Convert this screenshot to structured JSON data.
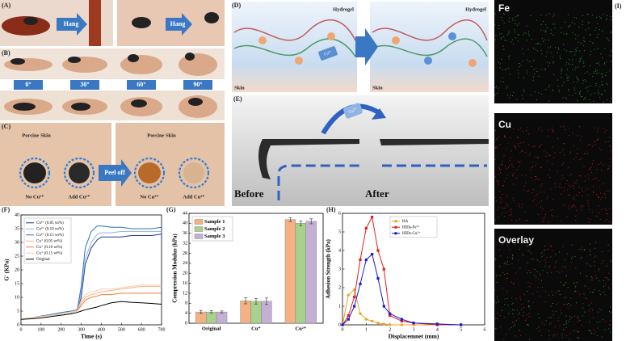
{
  "figure": {
    "A": {
      "label": "(A)",
      "arrows": [
        "Hang",
        "Hang"
      ]
    },
    "B": {
      "label": "(B)",
      "angles": [
        "0°",
        "30°",
        "60°",
        "90°"
      ]
    },
    "C": {
      "label": "(C)",
      "sites": [
        "Porcine Skin",
        "Porcine Skin"
      ],
      "samples": [
        "No Cu²⁺",
        "Add Cu²⁺",
        "No Cu²⁺",
        "Add Cu²⁺"
      ],
      "arrow": "Peel off"
    },
    "D": {
      "label": "(D)",
      "hydrogel": [
        "Hydrogel",
        "Hydrogel"
      ],
      "skin": [
        "Skin",
        "Skin"
      ],
      "ion": "Cu²⁺"
    },
    "E": {
      "label": "(E)",
      "ion": "Cu²⁺",
      "states": [
        "Before",
        "After"
      ]
    },
    "I": {
      "label": "(I)",
      "maps": [
        "Fe",
        "Cu",
        "Overlay"
      ]
    }
  },
  "chart_data": [
    {
      "panel_label": "(F)",
      "type": "line",
      "xlabel": "Time (s)",
      "ylabel": "G' (KPa)",
      "x": [
        0,
        50,
        100,
        150,
        200,
        250,
        280,
        300,
        320,
        350,
        380,
        400,
        450,
        500,
        550,
        600,
        650,
        700
      ],
      "xlim": [
        0,
        700
      ],
      "xticks": [
        0,
        100,
        200,
        300,
        400,
        500,
        600,
        700
      ],
      "ylim": [
        0,
        40
      ],
      "yticks": [
        0,
        5,
        10,
        15,
        20,
        25,
        30,
        35,
        40
      ],
      "legend": "upper left",
      "series": [
        {
          "name": "Cu²⁺ (0.05 wt%)",
          "color": "#1f3a93",
          "values": [
            2,
            2.5,
            3,
            3.5,
            4,
            4.5,
            5,
            10,
            22,
            28,
            31,
            32,
            32,
            32,
            32.5,
            32.5,
            32.5,
            33
          ]
        },
        {
          "name": "Cu²⁺ (0.10 wt%)",
          "color": "#8fb4e3",
          "values": [
            2,
            2.5,
            3,
            3.5,
            4,
            4.5,
            5,
            12,
            24,
            30,
            33,
            33.5,
            33.5,
            34,
            34,
            34,
            34,
            34
          ]
        },
        {
          "name": "Cu²⁺ (0.15 wt%)",
          "color": "#2e75b6",
          "values": [
            2,
            2.5,
            3.2,
            3.8,
            4.5,
            5,
            5.5,
            14,
            28,
            34,
            36,
            36,
            35.5,
            35.5,
            35,
            35,
            35,
            35.5
          ]
        },
        {
          "name": "Cu⁺ (0.05 wt%)",
          "color": "#f4b183",
          "values": [
            2,
            2.5,
            3,
            3.5,
            4,
            4.5,
            5,
            8,
            10,
            11,
            11.5,
            12,
            12.5,
            13,
            13.5,
            14,
            14,
            14
          ]
        },
        {
          "name": "Cu⁺ (0.10 wt%)",
          "color": "#ed7d31",
          "values": [
            2,
            2.5,
            3,
            3.5,
            4,
            4.5,
            5,
            7,
            9,
            10,
            10.5,
            11,
            11,
            11.5,
            11.5,
            11.5,
            11.5,
            11.5
          ]
        },
        {
          "name": "Cu⁺ (0.15 wt%)",
          "color": "#f8cbad",
          "values": [
            2,
            2.5,
            3,
            3.5,
            4,
            4.5,
            5,
            9,
            11,
            12,
            12.5,
            13,
            13,
            13.5,
            14,
            14.5,
            14.5,
            14.5
          ]
        },
        {
          "name": "Original",
          "color": "#000000",
          "values": [
            2,
            2.2,
            2.5,
            3,
            3.5,
            4,
            4.5,
            5,
            5.5,
            6,
            6.5,
            7,
            8,
            8.5,
            8.2,
            8,
            7.8,
            7.5
          ]
        }
      ]
    },
    {
      "panel_label": "(G)",
      "type": "bar",
      "ylabel": "Compression Modulus (kPa)",
      "categories": [
        "Original",
        "Cu⁺",
        "Cu²⁺"
      ],
      "ylim": [
        0,
        44
      ],
      "yticks": [
        0,
        4,
        8,
        12,
        16,
        20,
        24,
        28,
        32,
        36,
        40,
        44
      ],
      "legend": "upper left",
      "series": [
        {
          "name": "Sample 1",
          "color": "#f4b183",
          "values": [
            4.5,
            9,
            41.5
          ],
          "errors": [
            0.6,
            1.2,
            0.8
          ]
        },
        {
          "name": "Sample 2",
          "color": "#a9d18e",
          "values": [
            4.5,
            8.8,
            40
          ],
          "errors": [
            0.5,
            1.1,
            0.9
          ]
        },
        {
          "name": "Sample 3",
          "color": "#c5b0d5",
          "values": [
            4.5,
            8.8,
            40.8
          ],
          "errors": [
            0.4,
            1.3,
            1
          ]
        }
      ]
    },
    {
      "panel_label": "(H)",
      "type": "line",
      "xlabel": "Displacemnet (mm)",
      "ylabel": "Adhesion Strength (kPa)",
      "x": [
        0,
        0.25,
        0.5,
        0.75,
        1,
        1.25,
        1.5,
        1.75,
        2,
        2.5,
        3,
        4,
        5
      ],
      "xlim": [
        0,
        6
      ],
      "xticks": [
        0,
        1,
        2,
        3,
        4,
        5,
        6
      ],
      "ylim": [
        0,
        6
      ],
      "yticks": [
        0,
        1,
        2,
        3,
        4,
        5,
        6
      ],
      "legend": "upper center",
      "series": [
        {
          "name": "HA",
          "color": "#f0a020",
          "marker": "circle",
          "values": [
            0,
            1.6,
            1.9,
            0.6,
            0.3,
            0.2,
            0.1,
            0.05,
            0,
            0,
            0,
            0,
            0
          ]
        },
        {
          "name": "HIDs-Fe³⁺",
          "color": "#e02020",
          "marker": "square",
          "values": [
            0,
            0.5,
            1.5,
            3.5,
            5.2,
            5.8,
            4,
            3,
            0.5,
            0.2,
            0.1,
            0,
            0
          ]
        },
        {
          "name": "HIDs-Cu²⁺",
          "color": "#1a1ad0",
          "marker": "square",
          "values": [
            0,
            0.3,
            1,
            2.2,
            3.5,
            3.8,
            2.5,
            1,
            0.6,
            0.3,
            0.1,
            0.05,
            0
          ]
        }
      ]
    }
  ]
}
